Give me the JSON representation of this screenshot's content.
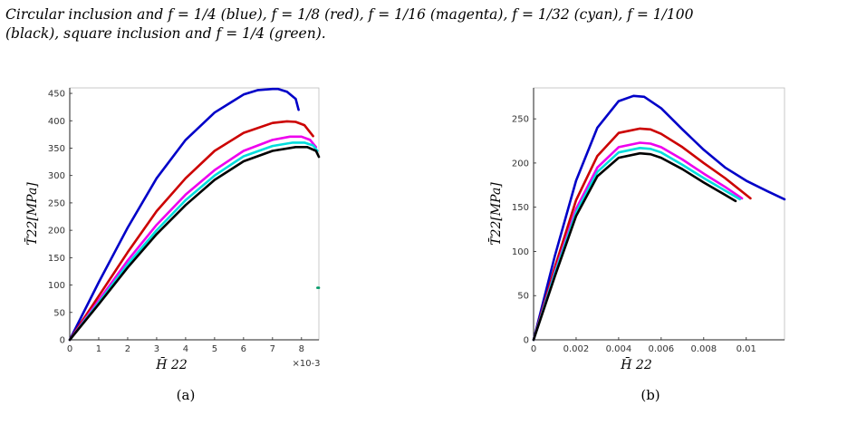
{
  "caption": {
    "line1": "Circular inclusion and f = 1/4 (blue), f = 1/8 (red), f = 1/16 (magenta), f = 1/32 (cyan), f = 1/100",
    "line2": "(black), square inclusion and f = 1/4 (green)."
  },
  "colors": {
    "blue": "#0000c8",
    "red": "#cc0000",
    "magenta": "#ee00ee",
    "cyan": "#00dddd",
    "black": "#000000",
    "green": "#009966",
    "axis": "#222222"
  },
  "chart_data": [
    {
      "type": "line",
      "panel_label": "(a)",
      "xlabel": "H̄ 22",
      "ylabel": "T̄22[MPa]",
      "x_multiplier": "×10-3",
      "xlim": [
        0,
        8.6
      ],
      "ylim": [
        0,
        460
      ],
      "xticks": [
        "0",
        "1",
        "2",
        "3",
        "4",
        "5",
        "6",
        "7",
        "8"
      ],
      "yticks": [
        "0",
        "50",
        "100",
        "150",
        "200",
        "250",
        "300",
        "350",
        "400",
        "450"
      ],
      "series": [
        {
          "color_key": "blue",
          "x": [
            0,
            1,
            2,
            3,
            4,
            5,
            6,
            6.5,
            7.0,
            7.2,
            7.5,
            7.8,
            7.9
          ],
          "y": [
            0,
            105,
            205,
            295,
            365,
            415,
            448,
            456,
            458,
            458,
            453,
            440,
            420
          ]
        },
        {
          "color_key": "red",
          "x": [
            0,
            1,
            2,
            3,
            4,
            5,
            6,
            7,
            7.5,
            7.8,
            8.1,
            8.4
          ],
          "y": [
            0,
            80,
            160,
            235,
            295,
            345,
            378,
            396,
            399,
            398,
            392,
            372
          ]
        },
        {
          "color_key": "magenta",
          "x": [
            0,
            1,
            2,
            3,
            4,
            5,
            6,
            7,
            7.6,
            8.0,
            8.3,
            8.5
          ],
          "y": [
            0,
            72,
            145,
            210,
            265,
            310,
            345,
            365,
            371,
            371,
            365,
            352
          ]
        },
        {
          "color_key": "cyan",
          "x": [
            0,
            1,
            2,
            3,
            4,
            5,
            6,
            7,
            7.7,
            8.1,
            8.4,
            8.55
          ],
          "y": [
            0,
            68,
            138,
            200,
            255,
            300,
            335,
            354,
            360,
            360,
            355,
            345
          ]
        },
        {
          "color_key": "black",
          "x": [
            0,
            1,
            2,
            3,
            4,
            5,
            6,
            7,
            7.8,
            8.2,
            8.5,
            8.6
          ],
          "y": [
            0,
            65,
            132,
            193,
            246,
            292,
            326,
            345,
            352,
            352,
            345,
            334
          ]
        },
        {
          "color_key": "green",
          "x": [
            8.55,
            8.6
          ],
          "y": [
            95,
            95
          ]
        }
      ]
    },
    {
      "type": "line",
      "panel_label": "(b)",
      "xlabel": "H̄ 22",
      "ylabel": "T̄22[MPa]",
      "xlim": [
        0,
        0.0118
      ],
      "ylim": [
        0,
        285
      ],
      "xticks": [
        "0",
        "0.002",
        "0.004",
        "0.006",
        "0.008",
        "0.01"
      ],
      "xtick_values": [
        0,
        0.002,
        0.004,
        0.006,
        0.008,
        0.01
      ],
      "yticks": [
        "0",
        "50",
        "100",
        "150",
        "200",
        "250"
      ],
      "series": [
        {
          "color_key": "blue",
          "x": [
            0,
            0.001,
            0.002,
            0.003,
            0.004,
            0.0047,
            0.0052,
            0.006,
            0.007,
            0.008,
            0.009,
            0.01,
            0.011,
            0.0118
          ],
          "y": [
            0,
            95,
            180,
            240,
            270,
            276,
            275,
            262,
            238,
            215,
            195,
            180,
            168,
            159
          ]
        },
        {
          "color_key": "red",
          "x": [
            0,
            0.001,
            0.002,
            0.003,
            0.004,
            0.005,
            0.0055,
            0.006,
            0.007,
            0.008,
            0.009,
            0.0102
          ],
          "y": [
            0,
            82,
            158,
            208,
            234,
            239,
            238,
            233,
            218,
            200,
            183,
            160
          ]
        },
        {
          "color_key": "magenta",
          "x": [
            0,
            0.001,
            0.002,
            0.003,
            0.004,
            0.005,
            0.0055,
            0.006,
            0.007,
            0.008,
            0.009,
            0.0098
          ],
          "y": [
            0,
            77,
            148,
            195,
            218,
            223,
            222,
            218,
            204,
            188,
            173,
            160
          ]
        },
        {
          "color_key": "cyan",
          "x": [
            0,
            0.001,
            0.002,
            0.003,
            0.004,
            0.005,
            0.0055,
            0.006,
            0.007,
            0.008,
            0.009,
            0.0097
          ],
          "y": [
            0,
            75,
            144,
            190,
            212,
            217,
            216,
            212,
            198,
            183,
            169,
            159
          ]
        },
        {
          "color_key": "black",
          "x": [
            0,
            0.001,
            0.002,
            0.003,
            0.004,
            0.005,
            0.0055,
            0.006,
            0.007,
            0.008,
            0.009,
            0.0095
          ],
          "y": [
            0,
            72,
            140,
            185,
            206,
            211,
            210,
            206,
            193,
            178,
            164,
            157
          ]
        }
      ]
    }
  ]
}
